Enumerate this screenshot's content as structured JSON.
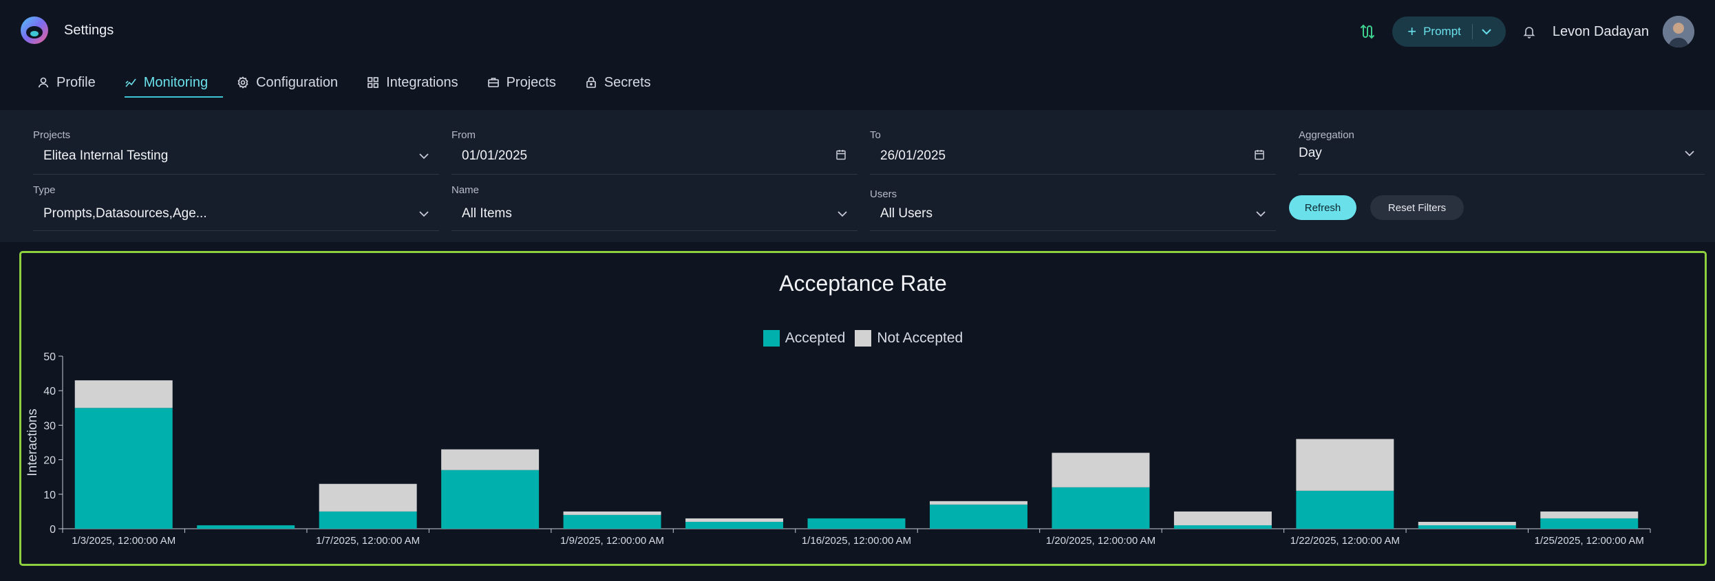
{
  "header": {
    "title": "Settings",
    "prompt_button_label": "Prompt",
    "user_name": "Levon Dadayan"
  },
  "tabs": [
    {
      "label": "Profile",
      "icon": "user-icon"
    },
    {
      "label": "Monitoring",
      "icon": "chart-line-icon",
      "active": true
    },
    {
      "label": "Configuration",
      "icon": "gear-icon"
    },
    {
      "label": "Integrations",
      "icon": "grid-icon"
    },
    {
      "label": "Projects",
      "icon": "briefcase-icon"
    },
    {
      "label": "Secrets",
      "icon": "lock-icon"
    }
  ],
  "filters": {
    "projects": {
      "label": "Projects",
      "value": "Elitea Internal Testing"
    },
    "from": {
      "label": "From",
      "value": "01/01/2025"
    },
    "to": {
      "label": "To",
      "value": "26/01/2025"
    },
    "aggregation": {
      "label": "Aggregation",
      "value": "Day"
    },
    "type": {
      "label": "Type",
      "value": "Prompts,Datasources,Age..."
    },
    "name": {
      "label": "Name",
      "value": "All Items"
    },
    "users": {
      "label": "Users",
      "value": "All Users"
    },
    "refresh_label": "Refresh",
    "reset_label": "Reset Filters"
  },
  "colors": {
    "accent": "#6ae0ea",
    "accepted": "#00b0ac",
    "not_accepted": "#d2d2d2",
    "panel_border": "#8ed13f"
  },
  "chart_data": {
    "type": "bar",
    "stacked": true,
    "title": "Acceptance Rate",
    "ylabel": "Interactions",
    "xlabel": "",
    "ylim": [
      0,
      50
    ],
    "yticks": [
      0,
      10,
      20,
      30,
      40,
      50
    ],
    "legend_position": "top-center",
    "categories": [
      "1/3/2025, 12:00:00 AM",
      "",
      "1/7/2025, 12:00:00 AM",
      "",
      "1/9/2025, 12:00:00 AM",
      "",
      "1/16/2025, 12:00:00 AM",
      "",
      "1/20/2025, 12:00:00 AM",
      "",
      "1/22/2025, 12:00:00 AM",
      "",
      "1/25/2025, 12:00:00 AM"
    ],
    "series": [
      {
        "name": "Accepted",
        "values": [
          35,
          1,
          5,
          17,
          4,
          2,
          3,
          7,
          12,
          1,
          11,
          1,
          3
        ]
      },
      {
        "name": "Not Accepted",
        "values": [
          8,
          0,
          8,
          6,
          1,
          1,
          0,
          1,
          10,
          4,
          15,
          1,
          2
        ]
      }
    ]
  }
}
